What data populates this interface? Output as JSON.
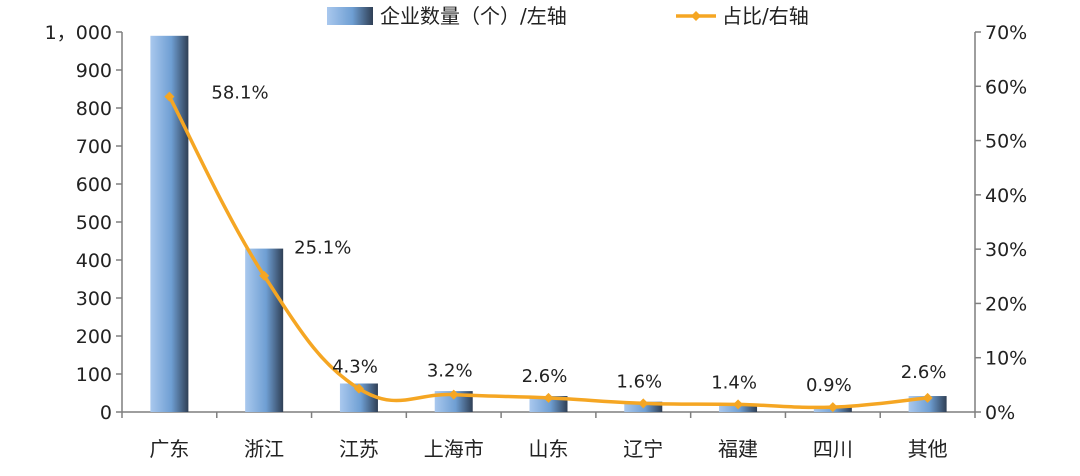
{
  "chart_data": {
    "type": "bar",
    "categories": [
      "广东",
      "浙江",
      "江苏",
      "上海市",
      "山东",
      "辽宁",
      "福建",
      "四川",
      "其他"
    ],
    "series": [
      {
        "name": "企业数量（个）/左轴",
        "type": "bar",
        "axis": "left",
        "values": [
          990,
          430,
          75,
          55,
          42,
          27,
          22,
          15,
          42
        ],
        "color": "#6f9fd3"
      },
      {
        "name": "占比/右轴",
        "type": "line",
        "axis": "right",
        "values": [
          58.1,
          25.1,
          4.3,
          3.2,
          2.6,
          1.6,
          1.4,
          0.9,
          2.6
        ],
        "labels": [
          "58.1%",
          "25.1%",
          "4.3%",
          "3.2%",
          "2.6%",
          "1.6%",
          "1.4%",
          "0.9%",
          "2.6%"
        ],
        "color": "#f5a623"
      }
    ],
    "left_axis": {
      "ylim": [
        0,
        1000
      ],
      "ticks": [
        0,
        100,
        200,
        300,
        400,
        500,
        600,
        700,
        800,
        900,
        1000
      ],
      "tick_labels": [
        "0",
        "100",
        "200",
        "300",
        "400",
        "500",
        "600",
        "700",
        "800",
        "900",
        "1，000"
      ]
    },
    "right_axis": {
      "ylim": [
        0,
        70
      ],
      "ticks": [
        0,
        10,
        20,
        30,
        40,
        50,
        60,
        70
      ],
      "tick_labels": [
        "0%",
        "10%",
        "20%",
        "30%",
        "40%",
        "50%",
        "60%",
        "70%"
      ]
    },
    "legend": {
      "position": "top",
      "items": [
        "企业数量（个）/左轴",
        "占比/右轴"
      ]
    },
    "grid": false
  }
}
